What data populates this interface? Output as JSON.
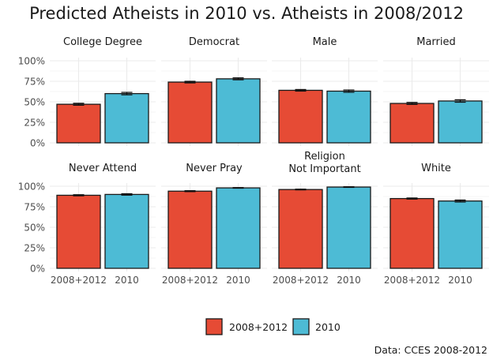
{
  "chart_data": {
    "type": "bar",
    "title": "Predicted Atheists in 2010 vs. Atheists in 2008/2012",
    "caption": "Data: CCES 2008-2012",
    "xlabel": "",
    "ylabel": "",
    "ylim": [
      0,
      1
    ],
    "yticks": [
      "0%",
      "25%",
      "50%",
      "75%",
      "100%"
    ],
    "ytick_values": [
      0,
      0.25,
      0.5,
      0.75,
      1.0
    ],
    "categories": [
      "2008+2012",
      "2010"
    ],
    "grid": true,
    "legend": {
      "position": "bottom",
      "entries": [
        {
          "label": "2008+2012",
          "color": "#E64B35"
        },
        {
          "label": "2010",
          "color": "#4DBBD5"
        }
      ]
    },
    "facets": [
      {
        "title": "College Degree",
        "values": [
          0.47,
          0.6
        ],
        "errors": [
          0.012,
          0.015
        ]
      },
      {
        "title": "Democrat",
        "values": [
          0.74,
          0.78
        ],
        "errors": [
          0.01,
          0.012
        ]
      },
      {
        "title": "Male",
        "values": [
          0.64,
          0.63
        ],
        "errors": [
          0.01,
          0.014
        ]
      },
      {
        "title": "Married",
        "values": [
          0.48,
          0.51
        ],
        "errors": [
          0.012,
          0.015
        ]
      },
      {
        "title": "Never Attend",
        "values": [
          0.89,
          0.9
        ],
        "errors": [
          0.007,
          0.009
        ]
      },
      {
        "title": "Never Pray",
        "values": [
          0.94,
          0.98
        ],
        "errors": [
          0.006,
          0.004
        ]
      },
      {
        "title": "Religion\nNot Important",
        "values": [
          0.96,
          0.99
        ],
        "errors": [
          0.005,
          0.004
        ]
      },
      {
        "title": "White",
        "values": [
          0.85,
          0.82
        ],
        "errors": [
          0.007,
          0.012
        ]
      }
    ]
  }
}
